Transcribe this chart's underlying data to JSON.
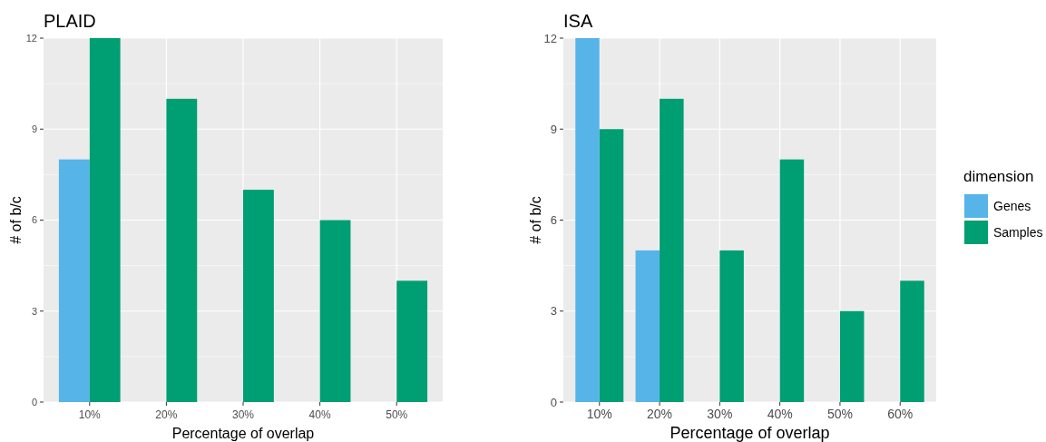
{
  "chart_data": [
    {
      "type": "bar",
      "title": "PLAID",
      "xlabel": "Percentage of overlap",
      "ylabel": "# of b/c",
      "categories": [
        "10%",
        "20%",
        "30%",
        "40%",
        "50%"
      ],
      "series": [
        {
          "color": "#56b4e9",
          "values": [
            8,
            0,
            0,
            0,
            0
          ]
        },
        {
          "color": "#009e73",
          "values": [
            12,
            10,
            7,
            6,
            4
          ]
        }
      ],
      "ylim": [
        0,
        12
      ],
      "yticks": [
        0,
        3,
        6,
        9,
        12
      ],
      "grid": true,
      "legend": false
    },
    {
      "type": "bar",
      "title": "ISA",
      "xlabel": "Percentage of overlap",
      "ylabel": "# of b/c",
      "legend_title": "dimension",
      "categories": [
        "10%",
        "20%",
        "30%",
        "40%",
        "50%",
        "60%"
      ],
      "series": [
        {
          "name": "Genes",
          "color": "#56b4e9",
          "values": [
            12,
            5,
            0,
            0,
            0,
            0
          ]
        },
        {
          "name": "Samples",
          "color": "#009e73",
          "values": [
            9,
            10,
            5,
            8,
            3,
            4
          ]
        }
      ],
      "ylim": [
        0,
        12
      ],
      "yticks": [
        0,
        3,
        6,
        9,
        12
      ],
      "grid": true,
      "legend": "right"
    }
  ]
}
